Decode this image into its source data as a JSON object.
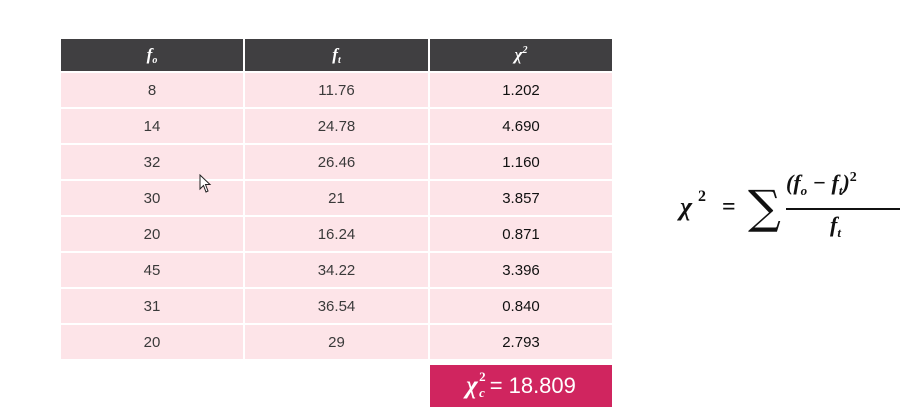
{
  "table": {
    "headers": [
      {
        "base": "f",
        "sub": "o",
        "sup": ""
      },
      {
        "base": "f",
        "sub": "t",
        "sup": ""
      },
      {
        "base": "χ",
        "sub": "",
        "sup": "2"
      }
    ],
    "rows": [
      [
        "8",
        "11.76",
        "1.202"
      ],
      [
        "14",
        "24.78",
        "4.690"
      ],
      [
        "32",
        "26.46",
        "1.160"
      ],
      [
        "30",
        "21",
        "3.857"
      ],
      [
        "20",
        "16.24",
        "0.871"
      ],
      [
        "45",
        "34.22",
        "3.396"
      ],
      [
        "31",
        "36.54",
        "0.840"
      ],
      [
        "20",
        "29",
        "2.793"
      ]
    ]
  },
  "result": {
    "symbol": "χ",
    "sup": "2",
    "sub": "c",
    "equals": "=",
    "value": "18.809"
  },
  "formula": {
    "lhs": "χ",
    "lhs_sup": "2",
    "equals": "=",
    "sum": "∑",
    "num_open": "(",
    "fo_base": "f",
    "fo_sub": "o",
    "minus": " − ",
    "ft_base": "f",
    "ft_sub": "t",
    "num_close": ")",
    "num_sup": "2",
    "den_base": "f",
    "den_sub": "t"
  },
  "colors": {
    "header_bg": "#403f41",
    "cell_bg": "#fde4e8",
    "result_bg": "#d0255f"
  },
  "icons": {
    "cursor": "mouse-pointer-icon"
  }
}
